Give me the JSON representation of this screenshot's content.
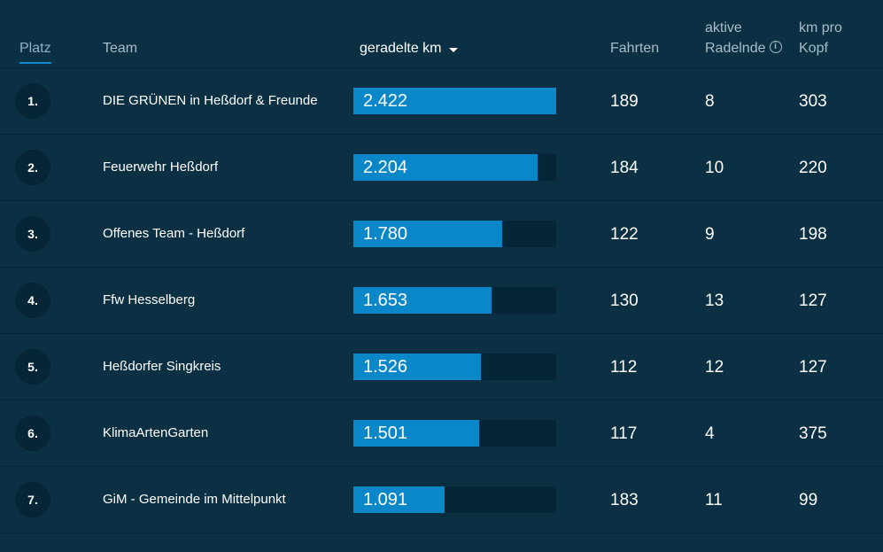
{
  "header": {
    "platz": "Platz",
    "team": "Team",
    "km": "geradelte km",
    "fahrten": "Fahrten",
    "aktive_line1": "aktive",
    "aktive_line2": "Radelnde",
    "info_icon": "i",
    "kmpro_line1": "km pro",
    "kmpro_line2": "Kopf"
  },
  "colors": {
    "background": "#0b3043",
    "bar_fill": "#0a87c9",
    "bar_track": "#062536",
    "accent": "#0a8cd4"
  },
  "max_km": 2422,
  "rows": [
    {
      "rank": "1.",
      "team": "DIE GRÜNEN in Heßdorf & Freunde",
      "km_label": "2.422",
      "km": 2422,
      "fahrten": "189",
      "aktive": "8",
      "km_pro_kopf": "303"
    },
    {
      "rank": "2.",
      "team": "Feuerwehr Heßdorf",
      "km_label": "2.204",
      "km": 2204,
      "fahrten": "184",
      "aktive": "10",
      "km_pro_kopf": "220"
    },
    {
      "rank": "3.",
      "team": "Offenes Team - Heßdorf",
      "km_label": "1.780",
      "km": 1780,
      "fahrten": "122",
      "aktive": "9",
      "km_pro_kopf": "198"
    },
    {
      "rank": "4.",
      "team": "Ffw Hesselberg",
      "km_label": "1.653",
      "km": 1653,
      "fahrten": "130",
      "aktive": "13",
      "km_pro_kopf": "127"
    },
    {
      "rank": "5.",
      "team": "Heßdorfer Singkreis",
      "km_label": "1.526",
      "km": 1526,
      "fahrten": "112",
      "aktive": "12",
      "km_pro_kopf": "127"
    },
    {
      "rank": "6.",
      "team": "KlimaArtenGarten",
      "km_label": "1.501",
      "km": 1501,
      "fahrten": "117",
      "aktive": "4",
      "km_pro_kopf": "375"
    },
    {
      "rank": "7.",
      "team": "GiM - Gemeinde im Mittelpunkt",
      "km_label": "1.091",
      "km": 1091,
      "fahrten": "183",
      "aktive": "11",
      "km_pro_kopf": "99"
    }
  ]
}
